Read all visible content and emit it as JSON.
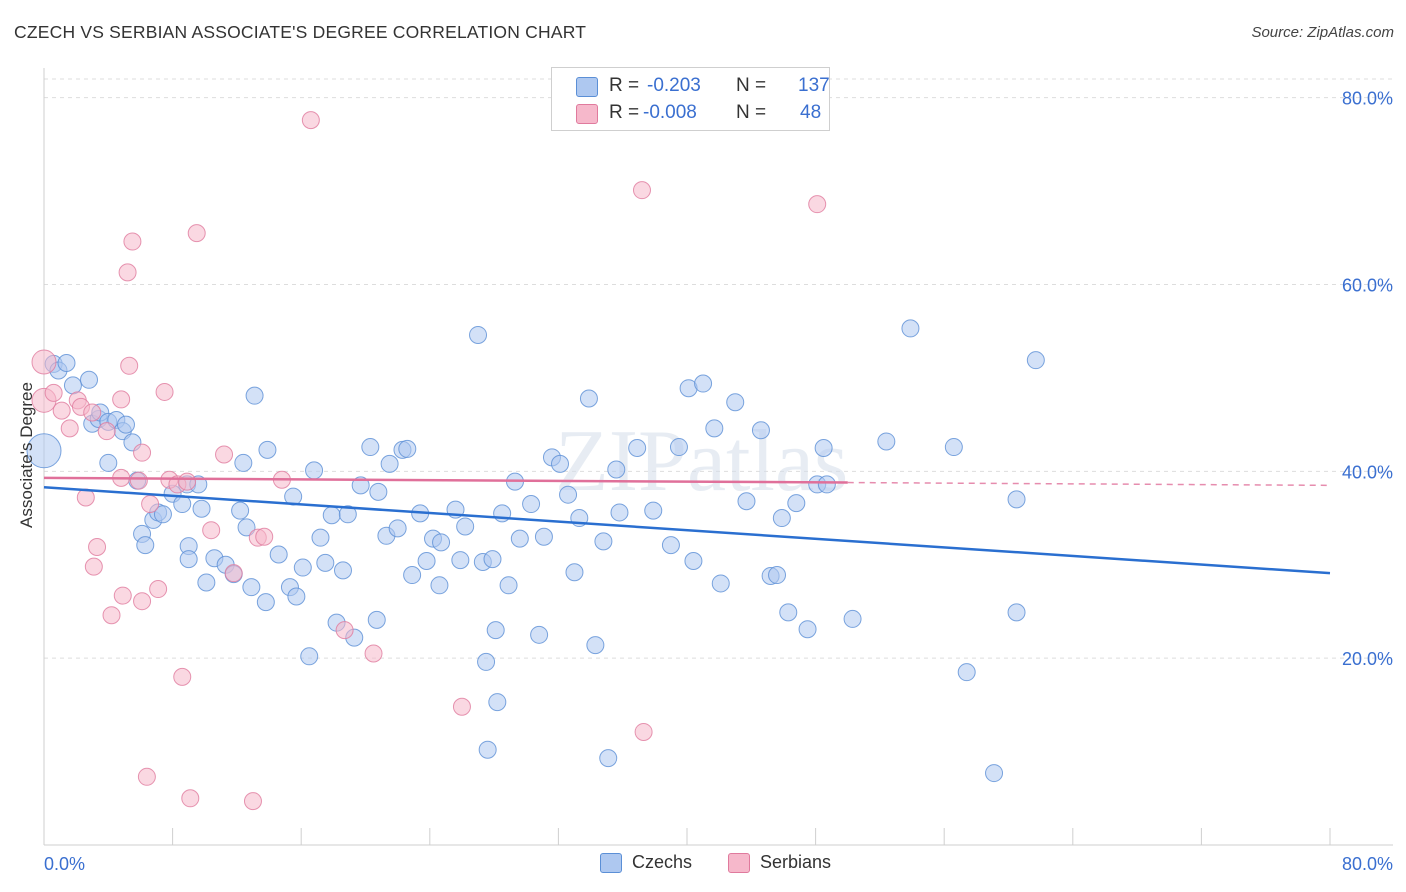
{
  "title": "CZECH VS SERBIAN ASSOCIATE'S DEGREE CORRELATION CHART",
  "source": "Source: ZipAtlas.com",
  "watermark": "ZIPatlas",
  "legend": {
    "rows": [
      {
        "r_label": "R = ",
        "r_value": "-0.203",
        "n_label": "N = ",
        "n_value": "137",
        "color": "#aec8f0"
      },
      {
        "r_label": "R = ",
        "r_value": "-0.008",
        "n_label": "N = ",
        "n_value": "48",
        "color": "#f6b8cb"
      }
    ]
  },
  "bottom_legend": [
    {
      "label": "Czechs",
      "color": "#aec8f0"
    },
    {
      "label": "Serbians",
      "color": "#f6b8cb"
    }
  ],
  "colors": {
    "czech_fill": "#aec8f0",
    "czech_stroke": "#5b8fd6",
    "czech_line": "#2a6fd0",
    "serb_fill": "#f6b8cb",
    "serb_stroke": "#e07a9d",
    "serb_line": "#e0709a",
    "tick_label": "#3a6fd0",
    "grid": "#dddddd"
  },
  "chart_data": {
    "type": "scatter",
    "title": "CZECH VS SERBIAN ASSOCIATE'S DEGREE CORRELATION CHART",
    "xlabel": "",
    "ylabel": "Associate's Degree",
    "xlim": [
      0,
      80
    ],
    "ylim": [
      0,
      82
    ],
    "x_tick_labels": [
      "0.0%",
      "80.0%"
    ],
    "y_ticks": [
      20,
      40,
      60,
      80
    ],
    "y_tick_labels": [
      "20.0%",
      "40.0%",
      "60.0%",
      "80.0%"
    ],
    "grid": "horizontal dashed",
    "legend_position": "top-center",
    "series": [
      {
        "name": "Czechs",
        "R": -0.203,
        "N": 137,
        "trend": {
          "x": [
            0,
            80
          ],
          "y": [
            38.3,
            29.1
          ]
        },
        "points": [
          [
            0.0,
            42.2
          ],
          [
            0.6,
            51.5
          ],
          [
            0.9,
            50.8
          ],
          [
            1.4,
            51.6
          ],
          [
            1.8,
            49.2
          ],
          [
            2.8,
            49.8
          ],
          [
            3.0,
            45.1
          ],
          [
            3.4,
            45.6
          ],
          [
            3.5,
            46.3
          ],
          [
            4.0,
            45.3
          ],
          [
            4.5,
            45.5
          ],
          [
            4.9,
            44.3
          ],
          [
            5.1,
            45.0
          ],
          [
            5.5,
            43.1
          ],
          [
            4.0,
            40.9
          ],
          [
            5.8,
            39.0
          ],
          [
            6.1,
            33.3
          ],
          [
            6.3,
            32.1
          ],
          [
            6.8,
            34.8
          ],
          [
            7.1,
            35.6
          ],
          [
            7.4,
            35.4
          ],
          [
            8.0,
            37.6
          ],
          [
            8.6,
            36.5
          ],
          [
            8.9,
            38.6
          ],
          [
            9.0,
            32.0
          ],
          [
            9.0,
            30.6
          ],
          [
            9.6,
            38.6
          ],
          [
            9.8,
            36.0
          ],
          [
            10.1,
            28.1
          ],
          [
            10.6,
            30.7
          ],
          [
            11.3,
            30.0
          ],
          [
            11.8,
            29.0
          ],
          [
            12.2,
            35.8
          ],
          [
            12.4,
            40.9
          ],
          [
            12.6,
            34.0
          ],
          [
            12.9,
            27.6
          ],
          [
            13.1,
            48.1
          ],
          [
            13.8,
            26.0
          ],
          [
            13.9,
            42.3
          ],
          [
            14.6,
            31.1
          ],
          [
            15.3,
            27.6
          ],
          [
            15.5,
            37.3
          ],
          [
            15.7,
            26.6
          ],
          [
            16.1,
            29.7
          ],
          [
            16.5,
            20.2
          ],
          [
            16.8,
            40.1
          ],
          [
            17.2,
            32.9
          ],
          [
            17.5,
            30.2
          ],
          [
            17.9,
            35.3
          ],
          [
            18.2,
            23.8
          ],
          [
            18.6,
            29.4
          ],
          [
            18.9,
            35.4
          ],
          [
            19.3,
            22.2
          ],
          [
            19.7,
            38.5
          ],
          [
            20.3,
            42.6
          ],
          [
            20.7,
            24.1
          ],
          [
            20.8,
            37.8
          ],
          [
            21.3,
            33.1
          ],
          [
            21.5,
            40.8
          ],
          [
            22.0,
            33.9
          ],
          [
            22.3,
            42.3
          ],
          [
            22.6,
            42.4
          ],
          [
            22.9,
            28.9
          ],
          [
            23.4,
            35.5
          ],
          [
            23.8,
            30.4
          ],
          [
            24.2,
            32.8
          ],
          [
            24.6,
            27.8
          ],
          [
            24.7,
            32.4
          ],
          [
            25.6,
            35.9
          ],
          [
            25.9,
            30.5
          ],
          [
            26.2,
            34.1
          ],
          [
            27.0,
            54.6
          ],
          [
            27.3,
            30.3
          ],
          [
            27.5,
            19.6
          ],
          [
            27.9,
            30.6
          ],
          [
            27.6,
            10.2
          ],
          [
            28.1,
            23.0
          ],
          [
            28.2,
            15.3
          ],
          [
            28.5,
            35.5
          ],
          [
            28.9,
            27.8
          ],
          [
            29.3,
            38.9
          ],
          [
            29.6,
            32.8
          ],
          [
            30.3,
            36.5
          ],
          [
            30.8,
            22.5
          ],
          [
            31.1,
            33.0
          ],
          [
            31.6,
            41.5
          ],
          [
            32.1,
            40.8
          ],
          [
            32.6,
            37.5
          ],
          [
            33.0,
            29.2
          ],
          [
            33.3,
            35.0
          ],
          [
            33.9,
            47.8
          ],
          [
            34.3,
            21.4
          ],
          [
            34.8,
            32.5
          ],
          [
            35.1,
            9.3
          ],
          [
            35.6,
            40.2
          ],
          [
            35.8,
            35.6
          ],
          [
            36.9,
            42.5
          ],
          [
            37.9,
            35.8
          ],
          [
            39.0,
            32.1
          ],
          [
            39.5,
            42.6
          ],
          [
            40.1,
            48.9
          ],
          [
            40.4,
            30.4
          ],
          [
            41.0,
            49.4
          ],
          [
            41.7,
            44.6
          ],
          [
            42.1,
            28.0
          ],
          [
            43.0,
            47.4
          ],
          [
            43.7,
            36.8
          ],
          [
            44.6,
            44.4
          ],
          [
            45.2,
            28.8
          ],
          [
            45.6,
            28.9
          ],
          [
            45.9,
            35.0
          ],
          [
            46.3,
            24.9
          ],
          [
            46.8,
            36.6
          ],
          [
            47.5,
            23.1
          ],
          [
            48.1,
            38.6
          ],
          [
            48.5,
            42.5
          ],
          [
            48.7,
            38.6
          ],
          [
            50.3,
            24.2
          ],
          [
            52.4,
            43.2
          ],
          [
            53.9,
            55.3
          ],
          [
            56.6,
            42.6
          ],
          [
            57.4,
            18.5
          ],
          [
            59.1,
            7.7
          ],
          [
            60.5,
            37.0
          ],
          [
            60.5,
            24.9
          ],
          [
            61.7,
            51.9
          ]
        ]
      },
      {
        "name": "Serbians",
        "R": -0.008,
        "N": 48,
        "trend": {
          "x": [
            0,
            50
          ],
          "y": [
            39.3,
            38.8
          ]
        },
        "trend_extension": {
          "x": [
            50,
            80
          ],
          "y": [
            38.8,
            38.5
          ]
        },
        "points": [
          [
            0.0,
            47.6
          ],
          [
            0.0,
            51.7
          ],
          [
            0.6,
            48.4
          ],
          [
            1.1,
            46.5
          ],
          [
            1.6,
            44.6
          ],
          [
            2.1,
            47.6
          ],
          [
            2.3,
            46.9
          ],
          [
            2.6,
            37.2
          ],
          [
            3.0,
            46.3
          ],
          [
            3.1,
            29.8
          ],
          [
            3.3,
            31.9
          ],
          [
            3.9,
            44.3
          ],
          [
            4.2,
            24.6
          ],
          [
            4.8,
            47.7
          ],
          [
            4.8,
            39.3
          ],
          [
            4.9,
            26.7
          ],
          [
            5.2,
            61.3
          ],
          [
            5.3,
            51.3
          ],
          [
            5.5,
            64.6
          ],
          [
            5.9,
            39.0
          ],
          [
            6.1,
            42.0
          ],
          [
            6.1,
            26.1
          ],
          [
            6.4,
            7.3
          ],
          [
            6.6,
            36.5
          ],
          [
            7.1,
            27.4
          ],
          [
            7.5,
            48.5
          ],
          [
            7.8,
            39.1
          ],
          [
            8.3,
            38.6
          ],
          [
            8.6,
            18.0
          ],
          [
            8.9,
            38.9
          ],
          [
            9.1,
            5.0
          ],
          [
            9.5,
            65.5
          ],
          [
            10.4,
            33.7
          ],
          [
            11.2,
            41.8
          ],
          [
            11.8,
            29.1
          ],
          [
            13.0,
            4.7
          ],
          [
            13.3,
            32.9
          ],
          [
            13.7,
            33.0
          ],
          [
            14.8,
            39.1
          ],
          [
            16.6,
            77.6
          ],
          [
            18.7,
            23.0
          ],
          [
            20.5,
            20.5
          ],
          [
            26.0,
            14.8
          ],
          [
            37.2,
            70.1
          ],
          [
            37.3,
            12.1
          ],
          [
            48.1,
            68.6
          ]
        ]
      }
    ]
  }
}
